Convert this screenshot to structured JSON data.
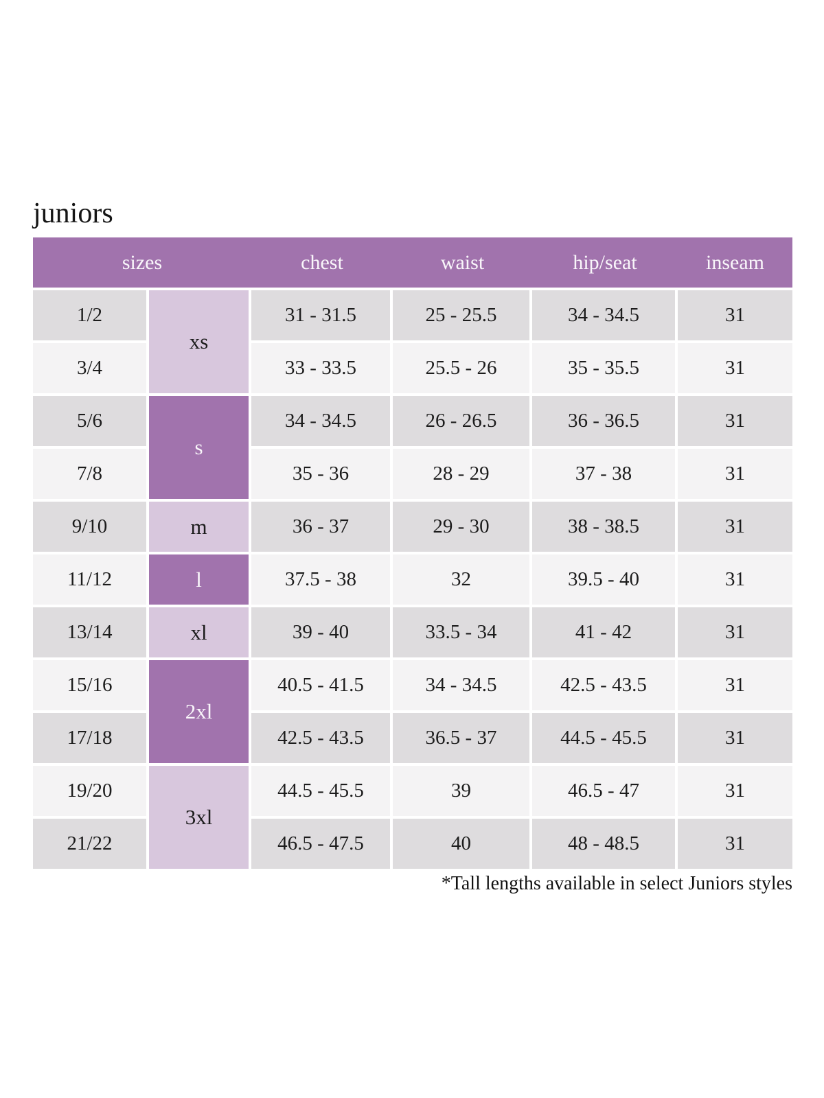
{
  "page": {
    "title": "juniors",
    "footnote": "*Tall lengths available in select Juniors styles"
  },
  "colors": {
    "header_purple": "#a173ad",
    "light_purple": "#d8c7dd",
    "row_gray": "#dedcde",
    "row_light": "#f4f3f4",
    "header_text": "#f9f6fa",
    "body_text": "#1c1c1c"
  },
  "table": {
    "headers": [
      "sizes",
      "chest",
      "waist",
      "hip/seat",
      "inseam"
    ],
    "size_groups": [
      {
        "label": "xs",
        "rows": 2,
        "shade": "pale"
      },
      {
        "label": "s",
        "rows": 2,
        "shade": "dark"
      },
      {
        "label": "m",
        "rows": 1,
        "shade": "pale"
      },
      {
        "label": "l",
        "rows": 1,
        "shade": "dark"
      },
      {
        "label": "xl",
        "rows": 1,
        "shade": "pale"
      },
      {
        "label": "2xl",
        "rows": 2,
        "shade": "dark"
      },
      {
        "label": "3xl",
        "rows": 2,
        "shade": "pale"
      }
    ],
    "rows": [
      {
        "size": "1/2",
        "chest": "31 - 31.5",
        "waist": "25 - 25.5",
        "hip_seat": "34 - 34.5",
        "inseam": "31"
      },
      {
        "size": "3/4",
        "chest": "33 - 33.5",
        "waist": "25.5 - 26",
        "hip_seat": "35 - 35.5",
        "inseam": "31"
      },
      {
        "size": "5/6",
        "chest": "34 - 34.5",
        "waist": "26 - 26.5",
        "hip_seat": "36 - 36.5",
        "inseam": "31"
      },
      {
        "size": "7/8",
        "chest": "35 - 36",
        "waist": "28 - 29",
        "hip_seat": "37 - 38",
        "inseam": "31"
      },
      {
        "size": "9/10",
        "chest": "36 - 37",
        "waist": "29 - 30",
        "hip_seat": "38 - 38.5",
        "inseam": "31"
      },
      {
        "size": "11/12",
        "chest": "37.5 - 38",
        "waist": "32",
        "hip_seat": "39.5 - 40",
        "inseam": "31"
      },
      {
        "size": "13/14",
        "chest": "39 - 40",
        "waist": "33.5 - 34",
        "hip_seat": "41 - 42",
        "inseam": "31"
      },
      {
        "size": "15/16",
        "chest": "40.5 - 41.5",
        "waist": "34 - 34.5",
        "hip_seat": "42.5 - 43.5",
        "inseam": "31"
      },
      {
        "size": "17/18",
        "chest": "42.5 - 43.5",
        "waist": "36.5 - 37",
        "hip_seat": "44.5 - 45.5",
        "inseam": "31"
      },
      {
        "size": "19/20",
        "chest": "44.5 - 45.5",
        "waist": "39",
        "hip_seat": "46.5 - 47",
        "inseam": "31"
      },
      {
        "size": "21/22",
        "chest": "46.5 - 47.5",
        "waist": "40",
        "hip_seat": "48 - 48.5",
        "inseam": "31"
      }
    ]
  }
}
